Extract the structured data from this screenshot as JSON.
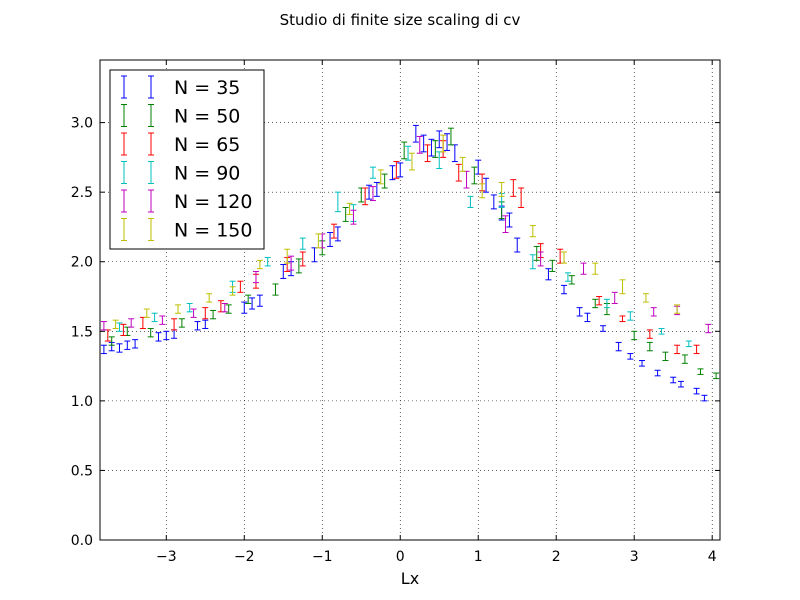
{
  "chart_data": {
    "type": "scatter",
    "title": "Studio di finite size scaling di cv",
    "xlabel": "Lx",
    "ylabel": "",
    "xlim": [
      -3.85,
      4.1
    ],
    "ylim": [
      0.0,
      3.45
    ],
    "xticks": [
      -3,
      -2,
      -1,
      0,
      1,
      2,
      3,
      4
    ],
    "xtick_labels": [
      "−3",
      "−2",
      "−1",
      "0",
      "1",
      "2",
      "3",
      "4"
    ],
    "yticks": [
      0.0,
      0.5,
      1.0,
      1.5,
      2.0,
      2.5,
      3.0
    ],
    "ytick_labels": [
      "0.0",
      "0.5",
      "1.0",
      "1.5",
      "2.0",
      "2.5",
      "3.0"
    ],
    "grid": true,
    "legend_position": "top-left",
    "error_bars": true,
    "series": [
      {
        "name": "N = 35",
        "color": "#0000ff",
        "points": [
          [
            -3.8,
            1.37,
            0.03
          ],
          [
            -3.7,
            1.39,
            0.03
          ],
          [
            -3.6,
            1.38,
            0.03
          ],
          [
            -3.5,
            1.4,
            0.03
          ],
          [
            -3.4,
            1.41,
            0.03
          ],
          [
            -3.1,
            1.46,
            0.03
          ],
          [
            -3.0,
            1.47,
            0.03
          ],
          [
            -2.9,
            1.48,
            0.03
          ],
          [
            -2.6,
            1.54,
            0.03
          ],
          [
            -2.5,
            1.55,
            0.03
          ],
          [
            -2.0,
            1.67,
            0.04
          ],
          [
            -1.9,
            1.7,
            0.04
          ],
          [
            -1.8,
            1.72,
            0.04
          ],
          [
            -1.5,
            1.93,
            0.05
          ],
          [
            -1.4,
            1.95,
            0.05
          ],
          [
            -1.1,
            2.05,
            0.05
          ],
          [
            -0.9,
            2.16,
            0.05
          ],
          [
            -0.8,
            2.2,
            0.05
          ],
          [
            -0.4,
            2.5,
            0.05
          ],
          [
            -0.3,
            2.52,
            0.05
          ],
          [
            -0.1,
            2.64,
            0.05
          ],
          [
            0.0,
            2.66,
            0.05
          ],
          [
            0.2,
            2.92,
            0.06
          ],
          [
            0.3,
            2.85,
            0.06
          ],
          [
            0.4,
            2.82,
            0.06
          ],
          [
            0.5,
            2.88,
            0.06
          ],
          [
            0.6,
            2.86,
            0.06
          ],
          [
            0.7,
            2.78,
            0.06
          ],
          [
            1.0,
            2.68,
            0.05
          ],
          [
            1.1,
            2.55,
            0.05
          ],
          [
            1.2,
            2.43,
            0.05
          ],
          [
            1.3,
            2.35,
            0.05
          ],
          [
            1.4,
            2.3,
            0.05
          ],
          [
            1.5,
            2.12,
            0.05
          ],
          [
            1.9,
            1.91,
            0.04
          ],
          [
            2.1,
            1.8,
            0.03
          ],
          [
            2.3,
            1.64,
            0.03
          ],
          [
            2.4,
            1.6,
            0.03
          ],
          [
            2.6,
            1.52,
            0.02
          ],
          [
            2.8,
            1.39,
            0.03
          ],
          [
            2.95,
            1.32,
            0.02
          ],
          [
            3.1,
            1.27,
            0.02
          ],
          [
            3.3,
            1.2,
            0.02
          ],
          [
            3.5,
            1.15,
            0.02
          ],
          [
            3.6,
            1.12,
            0.02
          ],
          [
            3.8,
            1.07,
            0.02
          ],
          [
            3.9,
            1.02,
            0.02
          ]
        ]
      },
      {
        "name": "N = 50",
        "color": "#008000",
        "points": [
          [
            -3.7,
            1.43,
            0.03
          ],
          [
            -3.5,
            1.5,
            0.03
          ],
          [
            -3.2,
            1.49,
            0.03
          ],
          [
            -2.8,
            1.56,
            0.03
          ],
          [
            -2.4,
            1.62,
            0.03
          ],
          [
            -2.2,
            1.66,
            0.03
          ],
          [
            -1.95,
            1.73,
            0.03
          ],
          [
            -1.6,
            1.8,
            0.04
          ],
          [
            -1.3,
            1.97,
            0.05
          ],
          [
            -1.0,
            2.1,
            0.05
          ],
          [
            -0.7,
            2.34,
            0.05
          ],
          [
            -0.5,
            2.48,
            0.05
          ],
          [
            -0.2,
            2.58,
            0.05
          ],
          [
            0.05,
            2.8,
            0.06
          ],
          [
            0.45,
            2.81,
            0.06
          ],
          [
            0.65,
            2.9,
            0.06
          ],
          [
            0.95,
            2.62,
            0.06
          ],
          [
            1.3,
            2.37,
            0.06
          ],
          [
            1.75,
            2.06,
            0.05
          ],
          [
            1.95,
            1.97,
            0.04
          ],
          [
            2.2,
            1.87,
            0.03
          ],
          [
            2.5,
            1.7,
            0.03
          ],
          [
            2.65,
            1.66,
            0.04
          ],
          [
            3.0,
            1.47,
            0.03
          ],
          [
            3.2,
            1.39,
            0.03
          ],
          [
            3.4,
            1.32,
            0.03
          ],
          [
            3.65,
            1.3,
            0.03
          ],
          [
            3.85,
            1.21,
            0.02
          ],
          [
            4.05,
            1.18,
            0.02
          ]
        ]
      },
      {
        "name": "N = 65",
        "color": "#ff0000",
        "points": [
          [
            -3.75,
            1.47,
            0.04
          ],
          [
            -3.55,
            1.51,
            0.04
          ],
          [
            -3.3,
            1.56,
            0.04
          ],
          [
            -2.9,
            1.55,
            0.04
          ],
          [
            -2.5,
            1.63,
            0.04
          ],
          [
            -2.3,
            1.68,
            0.04
          ],
          [
            -2.05,
            1.82,
            0.04
          ],
          [
            -1.85,
            1.86,
            0.05
          ],
          [
            -1.45,
            1.98,
            0.05
          ],
          [
            -1.25,
            2.02,
            0.05
          ],
          [
            -0.85,
            2.22,
            0.05
          ],
          [
            -0.45,
            2.47,
            0.06
          ],
          [
            -0.05,
            2.66,
            0.06
          ],
          [
            0.35,
            2.78,
            0.06
          ],
          [
            0.55,
            2.81,
            0.06
          ],
          [
            0.75,
            2.64,
            0.06
          ],
          [
            1.05,
            2.57,
            0.06
          ],
          [
            1.45,
            2.53,
            0.06
          ],
          [
            1.55,
            2.46,
            0.07
          ],
          [
            1.8,
            2.08,
            0.05
          ],
          [
            2.05,
            2.04,
            0.05
          ],
          [
            2.55,
            1.72,
            0.03
          ],
          [
            2.85,
            1.59,
            0.02
          ],
          [
            3.2,
            1.48,
            0.03
          ],
          [
            3.55,
            1.37,
            0.03
          ],
          [
            3.8,
            1.37,
            0.03
          ]
        ]
      },
      {
        "name": "N = 90",
        "color": "#00bfbf",
        "points": [
          [
            -3.6,
            1.53,
            0.03
          ],
          [
            -3.15,
            1.6,
            0.03
          ],
          [
            -2.7,
            1.67,
            0.03
          ],
          [
            -2.15,
            1.82,
            0.04
          ],
          [
            -1.7,
            2.0,
            0.03
          ],
          [
            -1.25,
            2.13,
            0.04
          ],
          [
            -0.8,
            2.43,
            0.07
          ],
          [
            -0.6,
            2.35,
            0.06
          ],
          [
            -0.35,
            2.64,
            0.04
          ],
          [
            0.1,
            2.78,
            0.05
          ],
          [
            0.5,
            2.73,
            0.06
          ],
          [
            0.9,
            2.43,
            0.04
          ],
          [
            1.3,
            2.44,
            0.05
          ],
          [
            1.7,
            2.0,
            0.05
          ],
          [
            2.15,
            1.89,
            0.03
          ],
          [
            2.65,
            1.7,
            0.03
          ],
          [
            2.95,
            1.61,
            0.03
          ],
          [
            3.35,
            1.5,
            0.02
          ],
          [
            3.7,
            1.41,
            0.02
          ]
        ]
      },
      {
        "name": "N = 120",
        "color": "#bf00bf",
        "points": [
          [
            -3.8,
            1.54,
            0.03
          ],
          [
            -3.45,
            1.56,
            0.03
          ],
          [
            -3.05,
            1.58,
            0.03
          ],
          [
            -2.65,
            1.63,
            0.03
          ],
          [
            -2.25,
            1.67,
            0.03
          ],
          [
            -1.85,
            1.89,
            0.04
          ],
          [
            -1.4,
            1.99,
            0.05
          ],
          [
            -1.0,
            2.15,
            0.05
          ],
          [
            -0.6,
            2.32,
            0.05
          ],
          [
            -0.35,
            2.49,
            0.05
          ],
          [
            0.25,
            2.84,
            0.06
          ],
          [
            0.85,
            2.59,
            0.06
          ],
          [
            1.35,
            2.27,
            0.06
          ],
          [
            1.8,
            2.02,
            0.05
          ],
          [
            2.35,
            1.95,
            0.04
          ],
          [
            2.75,
            1.74,
            0.04
          ],
          [
            3.25,
            1.64,
            0.03
          ],
          [
            3.55,
            1.65,
            0.03
          ],
          [
            3.95,
            1.52,
            0.03
          ]
        ]
      },
      {
        "name": "N = 150",
        "color": "#bfbf00",
        "points": [
          [
            -3.65,
            1.55,
            0.03
          ],
          [
            -3.25,
            1.63,
            0.03
          ],
          [
            -2.85,
            1.66,
            0.03
          ],
          [
            -2.45,
            1.74,
            0.03
          ],
          [
            -2.15,
            1.79,
            0.03
          ],
          [
            -1.8,
            1.98,
            0.03
          ],
          [
            -1.45,
            2.04,
            0.05
          ],
          [
            -1.05,
            2.15,
            0.05
          ],
          [
            -0.65,
            2.38,
            0.04
          ],
          [
            -0.25,
            2.61,
            0.05
          ],
          [
            0.15,
            2.72,
            0.06
          ],
          [
            0.55,
            2.85,
            0.06
          ],
          [
            0.8,
            2.7,
            0.05
          ],
          [
            1.05,
            2.51,
            0.05
          ],
          [
            1.3,
            2.52,
            0.05
          ],
          [
            1.7,
            2.22,
            0.04
          ],
          [
            2.1,
            2.03,
            0.04
          ],
          [
            2.5,
            1.95,
            0.04
          ],
          [
            2.85,
            1.82,
            0.05
          ],
          [
            3.15,
            1.74,
            0.03
          ],
          [
            3.55,
            1.66,
            0.03
          ]
        ]
      }
    ]
  }
}
